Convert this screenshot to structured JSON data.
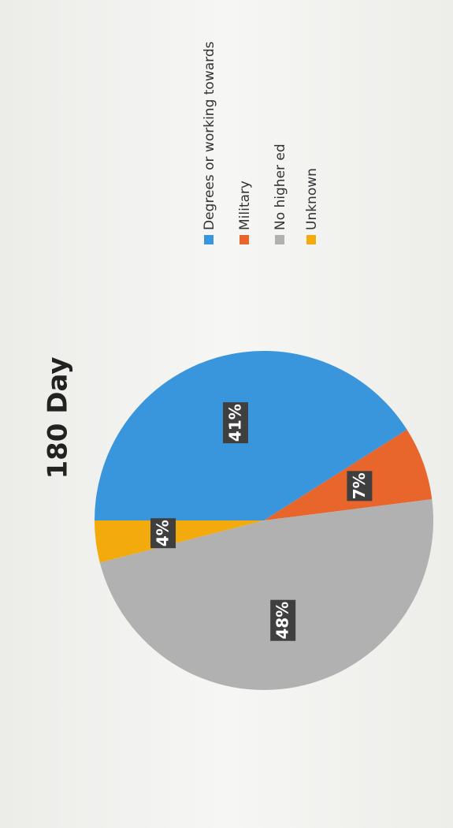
{
  "chart_data": {
    "type": "pie",
    "title": "180 Day",
    "categories": [
      "Degrees or working towards",
      "Military",
      "No higher ed",
      "Unknown"
    ],
    "values": [
      41,
      7,
      48,
      4
    ],
    "value_labels": [
      "41%",
      "7%",
      "48%",
      "4%"
    ],
    "colors": [
      "#3a96dc",
      "#e8652b",
      "#b1b1b1",
      "#f2aa0c"
    ],
    "legend": "right"
  }
}
